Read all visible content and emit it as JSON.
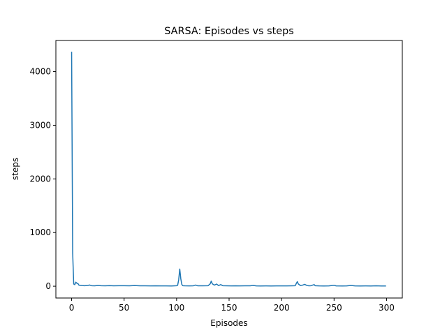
{
  "chart_data": {
    "type": "line",
    "title": "SARSA: Episodes vs steps",
    "xlabel": "Episodes",
    "ylabel": "steps",
    "xlim": [
      -15,
      315
    ],
    "ylim": [
      -220,
      4580
    ],
    "xticks": [
      0,
      50,
      100,
      150,
      200,
      250,
      300
    ],
    "yticks": [
      0,
      1000,
      2000,
      3000,
      4000
    ],
    "grid": false,
    "legend": "none",
    "series": [
      {
        "color": "#1f77b4",
        "points": [
          [
            0,
            4360
          ],
          [
            1,
            620
          ],
          [
            2,
            40
          ],
          [
            3,
            30
          ],
          [
            4,
            75
          ],
          [
            5,
            55
          ],
          [
            6,
            50
          ],
          [
            7,
            20
          ],
          [
            8,
            15
          ],
          [
            10,
            12
          ],
          [
            12,
            10
          ],
          [
            15,
            12
          ],
          [
            17,
            22
          ],
          [
            19,
            10
          ],
          [
            22,
            8
          ],
          [
            25,
            14
          ],
          [
            28,
            9
          ],
          [
            32,
            8
          ],
          [
            36,
            11
          ],
          [
            40,
            8
          ],
          [
            45,
            10
          ],
          [
            50,
            9
          ],
          [
            55,
            7
          ],
          [
            60,
            13
          ],
          [
            65,
            8
          ],
          [
            70,
            7
          ],
          [
            75,
            6
          ],
          [
            80,
            8
          ],
          [
            85,
            6
          ],
          [
            90,
            6
          ],
          [
            95,
            5
          ],
          [
            100,
            9
          ],
          [
            101,
            18
          ],
          [
            102,
            120
          ],
          [
            103,
            320
          ],
          [
            104,
            140
          ],
          [
            105,
            30
          ],
          [
            106,
            10
          ],
          [
            108,
            7
          ],
          [
            112,
            6
          ],
          [
            116,
            8
          ],
          [
            118,
            22
          ],
          [
            120,
            8
          ],
          [
            125,
            7
          ],
          [
            130,
            10
          ],
          [
            132,
            45
          ],
          [
            133,
            95
          ],
          [
            134,
            45
          ],
          [
            136,
            20
          ],
          [
            138,
            40
          ],
          [
            140,
            12
          ],
          [
            142,
            30
          ],
          [
            144,
            10
          ],
          [
            148,
            8
          ],
          [
            152,
            6
          ],
          [
            156,
            8
          ],
          [
            160,
            6
          ],
          [
            165,
            7
          ],
          [
            170,
            8
          ],
          [
            173,
            14
          ],
          [
            176,
            6
          ],
          [
            180,
            5
          ],
          [
            185,
            6
          ],
          [
            190,
            5
          ],
          [
            195,
            6
          ],
          [
            200,
            6
          ],
          [
            205,
            6
          ],
          [
            210,
            8
          ],
          [
            213,
            10
          ],
          [
            214,
            50
          ],
          [
            215,
            85
          ],
          [
            216,
            40
          ],
          [
            218,
            12
          ],
          [
            220,
            20
          ],
          [
            222,
            35
          ],
          [
            224,
            15
          ],
          [
            226,
            8
          ],
          [
            228,
            10
          ],
          [
            231,
            30
          ],
          [
            232,
            10
          ],
          [
            236,
            6
          ],
          [
            240,
            5
          ],
          [
            245,
            6
          ],
          [
            250,
            18
          ],
          [
            252,
            6
          ],
          [
            258,
            5
          ],
          [
            262,
            6
          ],
          [
            266,
            14
          ],
          [
            270,
            6
          ],
          [
            275,
            5
          ],
          [
            280,
            6
          ],
          [
            285,
            5
          ],
          [
            290,
            7
          ],
          [
            295,
            5
          ],
          [
            299,
            5
          ]
        ]
      }
    ]
  }
}
